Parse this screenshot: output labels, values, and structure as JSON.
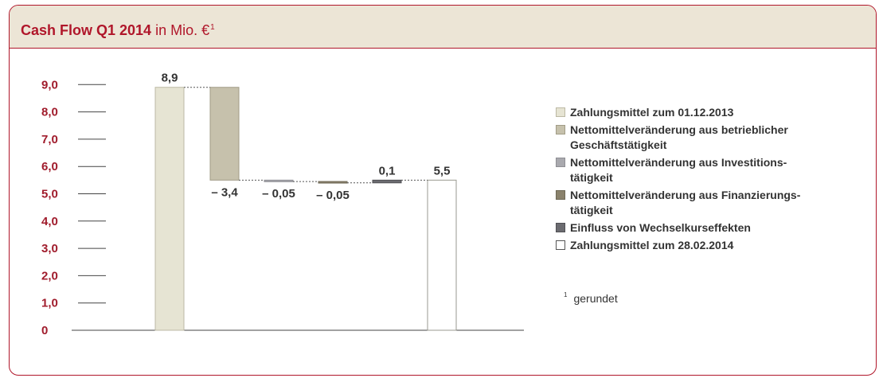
{
  "header": {
    "title_bold": "Cash Flow Q1 2014",
    "title_rest": " in Mio. €",
    "title_sup": "1"
  },
  "colors": {
    "accent": "#b0162a",
    "header_bg": "#ece5d6",
    "axis_text": "#a01c2c",
    "connector": "#555555"
  },
  "chart_data": {
    "type": "bar",
    "subtype": "waterfall",
    "title": "Cash Flow Q1 2014 in Mio. €",
    "ylim": [
      0,
      9.0
    ],
    "yticks": [
      "0",
      "1,0",
      "2,0",
      "3,0",
      "4,0",
      "5,0",
      "6,0",
      "7,0",
      "8,0",
      "9,0"
    ],
    "grid": false,
    "legend_position": "right",
    "bars": [
      {
        "name": "Zahlungsmittel zum 01.12.2013",
        "start": 0,
        "end": 8.9,
        "label": "8,9",
        "label_pos": "top",
        "fill": "#e6e4d3",
        "stroke": "#bcb9a4"
      },
      {
        "name": "Nettomittelveränderung aus betrieblicher Geschäftstätigkeit",
        "start": 8.9,
        "end": 5.5,
        "label": "– 3,4",
        "label_pos": "bottom",
        "fill": "#c6c1ac",
        "stroke": "#a19c86"
      },
      {
        "name": "Nettomittelveränderung aus Investitionstätigkeit",
        "start": 5.5,
        "end": 5.45,
        "label": "– 0,05",
        "label_pos": "bottom",
        "fill": "#a9a9ae",
        "stroke": "#8f8f94"
      },
      {
        "name": "Nettomittelveränderung aus Finanzierungstätigkeit",
        "start": 5.45,
        "end": 5.4,
        "label": "– 0,05",
        "label_pos": "bottom",
        "fill": "#8a826c",
        "stroke": "#6e6855"
      },
      {
        "name": "Einfluss von Wechselkurseffekten",
        "start": 5.4,
        "end": 5.5,
        "label": "0,1",
        "label_pos": "top",
        "fill": "#6b6b70",
        "stroke": "#505054"
      },
      {
        "name": "Zahlungsmittel zum 28.02.2014",
        "start": 0,
        "end": 5.5,
        "label": "5,5",
        "label_pos": "top",
        "fill": "#ffffff",
        "stroke": "#9a9a90"
      }
    ]
  },
  "legend": [
    {
      "lines": [
        "Zahlungsmittel zum 01.12.2013"
      ],
      "fill": "#e6e4d3",
      "stroke": "#bcb9a4"
    },
    {
      "lines": [
        "Nettomittelveränderung aus betrieblicher",
        "Geschäftstätigkeit"
      ],
      "fill": "#c6c1ac",
      "stroke": "#a19c86"
    },
    {
      "lines": [
        "Nettomittelveränderung aus Investitions-",
        "tätigkeit"
      ],
      "fill": "#a9a9ae",
      "stroke": "#8f8f94"
    },
    {
      "lines": [
        "Nettomittelveränderung aus Finanzierungs-",
        "tätigkeit"
      ],
      "fill": "#8a826c",
      "stroke": "#6e6855"
    },
    {
      "lines": [
        "Einfluss von Wechselkurseffekten"
      ],
      "fill": "#6b6b70",
      "stroke": "#505054"
    },
    {
      "lines": [
        "Zahlungsmittel zum 28.02.2014"
      ],
      "fill": "#ffffff",
      "stroke": "#555555"
    }
  ],
  "footnote": {
    "mark": "1",
    "text": "gerundet"
  }
}
